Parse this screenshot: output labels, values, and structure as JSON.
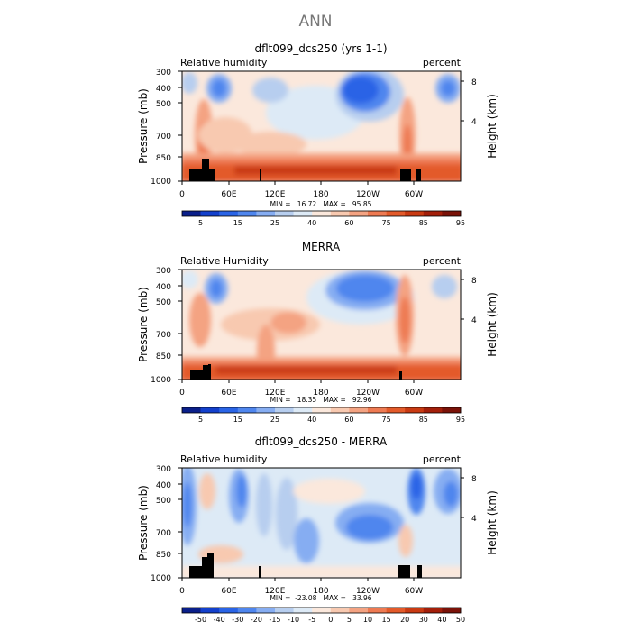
{
  "page_title": "ANN",
  "chart_data": [
    {
      "type": "heatmap",
      "title": "dflt099_dcs250 (yrs 1-1)",
      "left_label": "Relative humidity",
      "right_label": "percent",
      "ylabel": "Pressure (mb)",
      "ylabel_right": "Height (km)",
      "x_ticks": [
        "0",
        "60E",
        "120E",
        "180",
        "120W",
        "60W"
      ],
      "y_ticks": [
        "300",
        "400",
        "500",
        "700",
        "850",
        "1000"
      ],
      "height_ticks": [
        "8",
        "4"
      ],
      "stats": "MIN =   16.72   MAX =   95.85",
      "colorbar_labels": [
        "5",
        "15",
        "25",
        "40",
        "60",
        "75",
        "85",
        "95"
      ],
      "colors": [
        "#0a1f8a",
        "#1340cc",
        "#2a64e6",
        "#4f86ee",
        "#86adf2",
        "#b7ceef",
        "#ddeaf6",
        "#fbe8dc",
        "#f8c9b0",
        "#f4a382",
        "#ee7a52",
        "#e35a2a",
        "#c93a12",
        "#a31f0a",
        "#7a1208"
      ],
      "levels": [
        5,
        10,
        15,
        20,
        25,
        30,
        40,
        50,
        60,
        70,
        75,
        80,
        85,
        90,
        95
      ]
    },
    {
      "type": "heatmap",
      "title": "MERRA",
      "left_label": "Relative Humidity",
      "right_label": "percent",
      "ylabel": "Pressure (mb)",
      "ylabel_right": "Height (km)",
      "x_ticks": [
        "0",
        "60E",
        "120E",
        "180",
        "120W",
        "60W"
      ],
      "y_ticks": [
        "300",
        "400",
        "500",
        "700",
        "850",
        "1000"
      ],
      "height_ticks": [
        "8",
        "4"
      ],
      "stats": "MIN =   18.35   MAX =   92.96",
      "colorbar_labels": [
        "5",
        "15",
        "25",
        "40",
        "60",
        "75",
        "85",
        "95"
      ],
      "colors": [
        "#0a1f8a",
        "#1340cc",
        "#2a64e6",
        "#4f86ee",
        "#86adf2",
        "#b7ceef",
        "#ddeaf6",
        "#fbe8dc",
        "#f8c9b0",
        "#f4a382",
        "#ee7a52",
        "#e35a2a",
        "#c93a12",
        "#a31f0a",
        "#7a1208"
      ],
      "levels": [
        5,
        10,
        15,
        20,
        25,
        30,
        40,
        50,
        60,
        70,
        75,
        80,
        85,
        90,
        95
      ]
    },
    {
      "type": "heatmap",
      "title": "dflt099_dcs250 - MERRA",
      "left_label": "Relative humidity",
      "right_label": "percent",
      "ylabel": "Pressure (mb)",
      "ylabel_right": "Height (km)",
      "x_ticks": [
        "0",
        "60E",
        "120E",
        "180",
        "120W",
        "60W"
      ],
      "y_ticks": [
        "300",
        "400",
        "500",
        "700",
        "850",
        "1000"
      ],
      "height_ticks": [
        "8",
        "4"
      ],
      "stats": "MIN =  -23.08   MAX =   33.96",
      "colorbar_labels": [
        "-50",
        "-40",
        "-30",
        "-20",
        "-15",
        "-10",
        "-5",
        "0",
        "5",
        "10",
        "15",
        "20",
        "30",
        "40",
        "50"
      ],
      "colors": [
        "#0a1f8a",
        "#1340cc",
        "#2a64e6",
        "#4f86ee",
        "#86adf2",
        "#b7ceef",
        "#ddeaf6",
        "#fbe8dc",
        "#f8c9b0",
        "#f4a382",
        "#ee7a52",
        "#e35a2a",
        "#c93a12",
        "#a31f0a",
        "#7a1208"
      ],
      "levels": [
        -50,
        -40,
        -30,
        -20,
        -15,
        -10,
        -5,
        0,
        5,
        10,
        15,
        20,
        30,
        40,
        50
      ]
    }
  ]
}
